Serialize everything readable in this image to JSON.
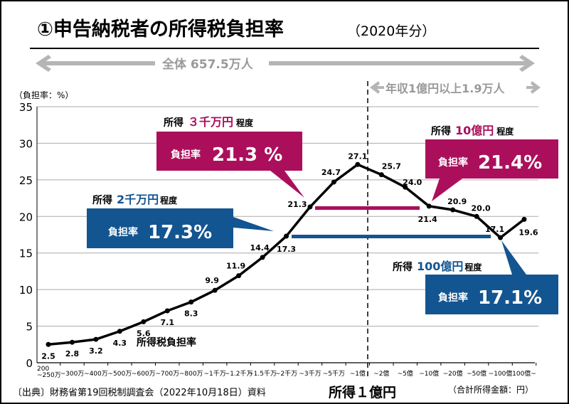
{
  "title": "①申告納税者の所得税負担率",
  "title_year": "（2020年分）",
  "overall_label": "全体 657.5万人",
  "high_income_label": "年収1億円以上1.9万人",
  "y_unit": "（負担率：%）",
  "x_unit": "（合計所得金額：円）",
  "divider_label": "所得１億円",
  "source": "〔出典〕財務省第19回税制調査会（2022年10月18日）資料",
  "series_label": "所得税負担率",
  "colors": {
    "magenta": "#ab0f5c",
    "blue": "#135590",
    "line": "#000000",
    "arrow": "#b5b5b5"
  },
  "callouts": [
    {
      "income_prefix": "所得",
      "income": "３千万円",
      "income_suffix": "程度",
      "rate_label": "負担率",
      "rate": "21.3 %",
      "color": "magenta"
    },
    {
      "income_prefix": "所得",
      "income": "10億円",
      "income_suffix": "程度",
      "rate_label": "負担率",
      "rate": "21.4%",
      "color": "magenta"
    },
    {
      "income_prefix": "所得",
      "income": "2千万円",
      "income_suffix": "程度",
      "rate_label": "負担率",
      "rate": "17.3%",
      "color": "blue"
    },
    {
      "income_prefix": "所得",
      "income": "100億円",
      "income_suffix": "程度",
      "rate_label": "負担率",
      "rate": "17.1%",
      "color": "blue"
    }
  ],
  "chart_data": {
    "type": "line",
    "title": "①申告納税者の所得税負担率",
    "ylabel": "（負担率：%）",
    "xlabel": "（合計所得金額：円）",
    "ylim": [
      0,
      35
    ],
    "yticks": [
      0,
      5,
      10,
      15,
      20,
      25,
      30,
      35
    ],
    "grid": true,
    "categories": [
      "200\n~250万",
      "~300万",
      "~400万",
      "~500万",
      "~600万",
      "~700万",
      "~800万",
      "~1千万",
      "~1.2千万",
      "~1.5千万",
      "~2千万",
      "~3千万",
      "~5千万",
      "~1億",
      "~2億",
      "~5億",
      "~10億",
      "~20億",
      "~50億",
      "~100億",
      "100億~"
    ],
    "series": [
      {
        "name": "所得税負担率",
        "values": [
          2.5,
          2.8,
          3.2,
          4.3,
          5.6,
          7.1,
          8.3,
          9.9,
          11.9,
          14.4,
          17.3,
          21.3,
          24.7,
          27.1,
          25.7,
          24.0,
          21.4,
          20.9,
          20.0,
          17.1,
          19.6
        ]
      }
    ],
    "data_labels": [
      "2.5",
      "2.8",
      "3.2",
      "4.3",
      "5.6",
      "7.1",
      "8.3",
      "9.9",
      "11.9",
      "14.4",
      "17.3",
      "21.3",
      "24.7",
      "27.1",
      "25.7",
      "24.0",
      "21.4",
      "20.9",
      "20.0",
      "17.1",
      "19.6"
    ]
  }
}
